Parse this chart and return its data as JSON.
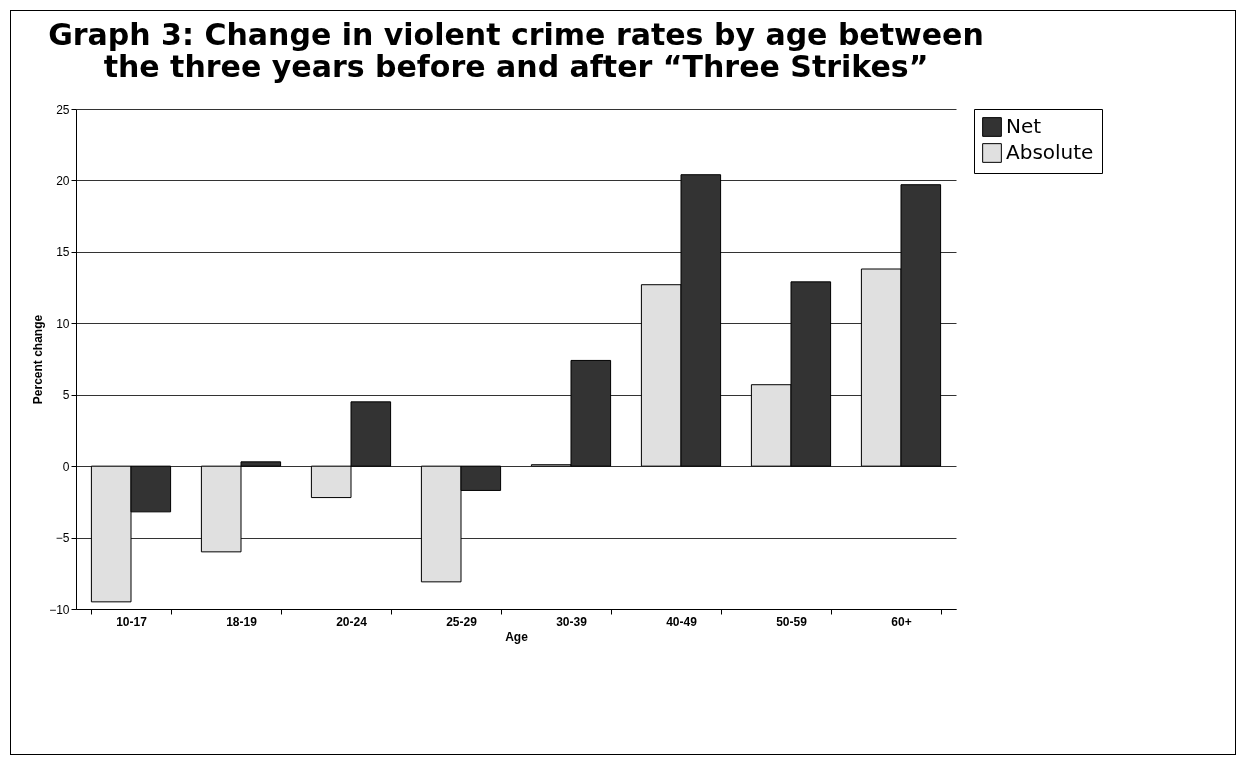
{
  "chart_data": {
    "type": "bar",
    "title": "Graph 3:  Change in violent crime rates by age between the three years before and after “Three Strikes”",
    "xlabel": "Age",
    "ylabel": "Percent change",
    "categories": [
      "10-17",
      "18-19",
      "20-24",
      "25-29",
      "30-39",
      "40-49",
      "50-59",
      "60+"
    ],
    "series": [
      {
        "name": "Absolute",
        "color": "#e0e0e0",
        "values": [
          -9.5,
          -6.0,
          -2.2,
          -8.1,
          0.1,
          12.7,
          5.7,
          13.8
        ]
      },
      {
        "name": "Net",
        "color": "#333333",
        "values": [
          -3.2,
          0.3,
          4.5,
          -1.7,
          7.4,
          20.4,
          12.9,
          19.7
        ]
      }
    ],
    "ylim": [
      -10,
      25
    ],
    "yticks": [
      -10,
      -5,
      0,
      5,
      10,
      15,
      20,
      25
    ],
    "grid": "y",
    "legend": "right"
  }
}
